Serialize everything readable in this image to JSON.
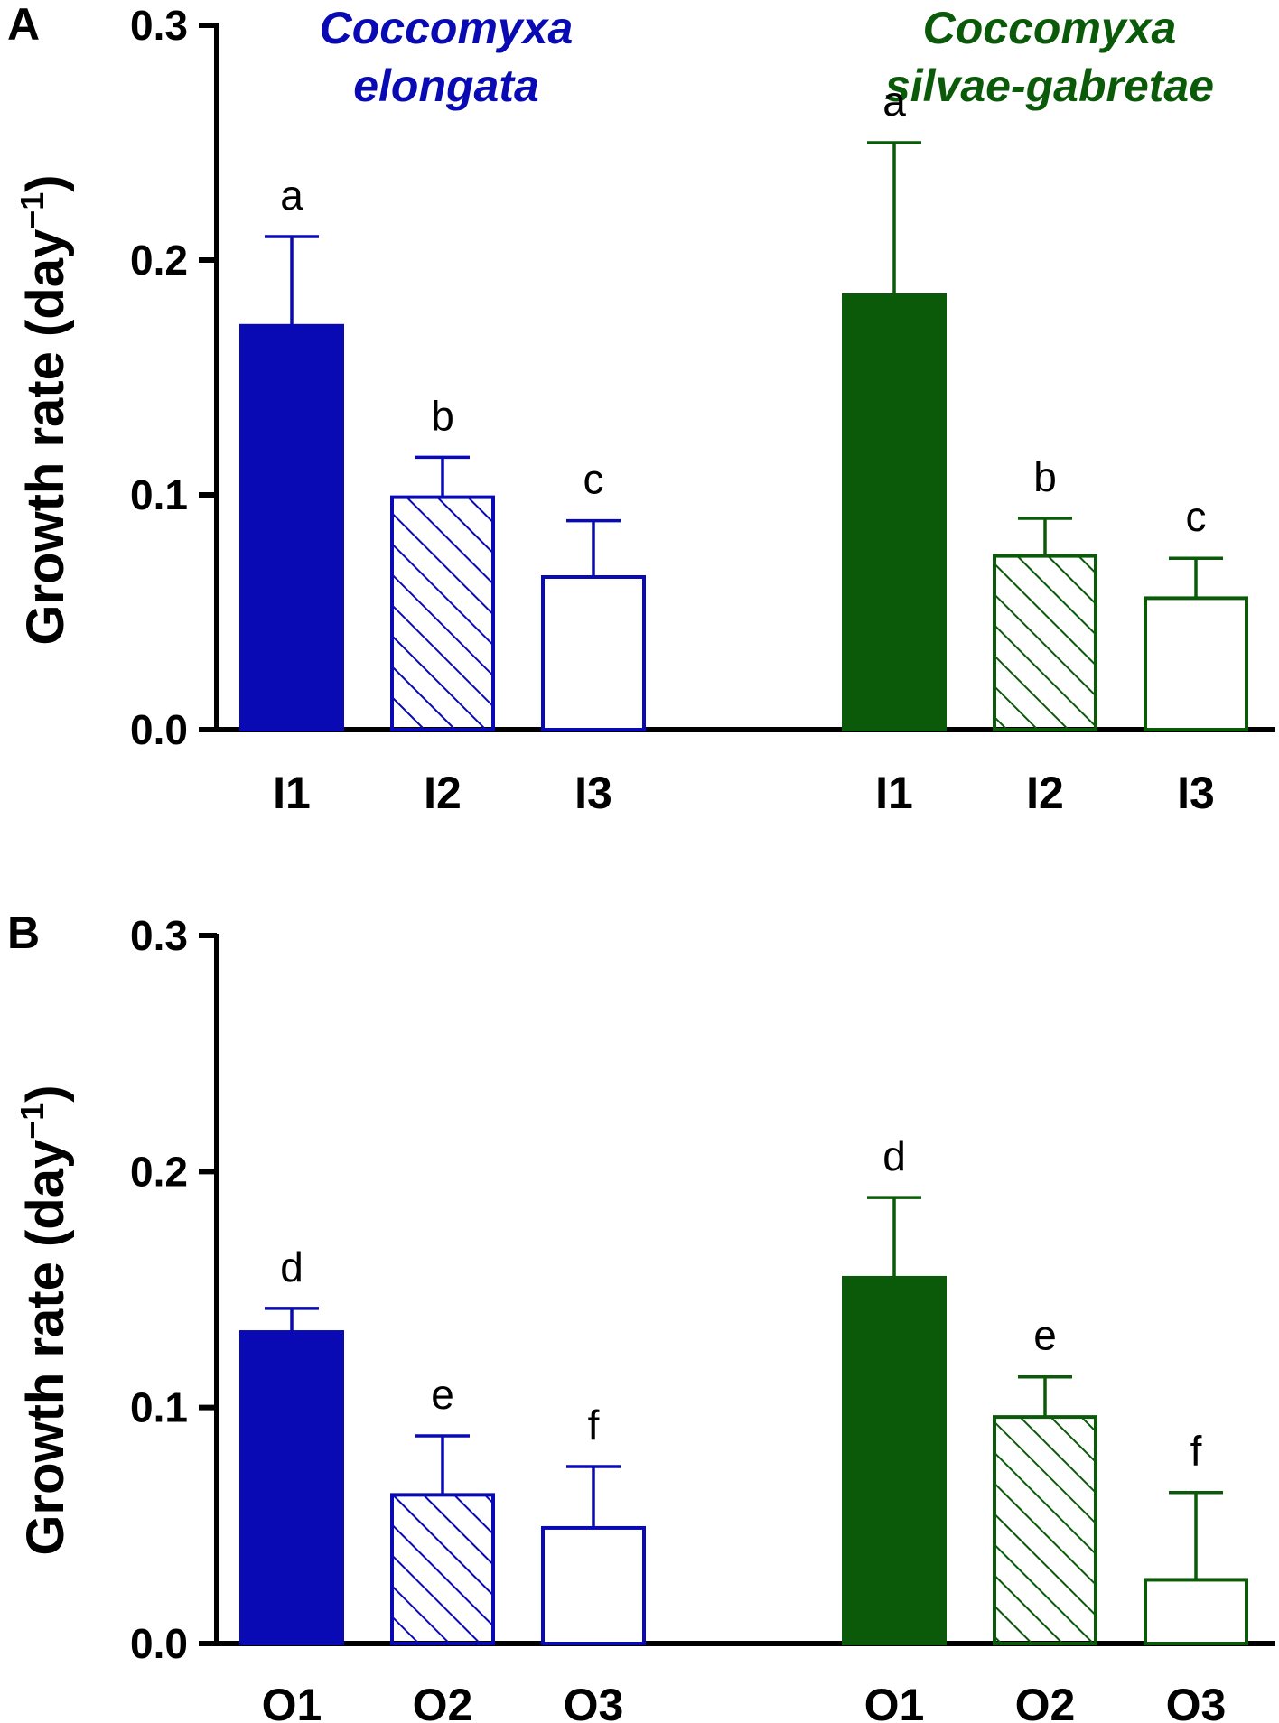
{
  "colors": {
    "species_1": "#0a0ab4",
    "species_2": "#0a5a0a",
    "axis": "#000000"
  },
  "species": [
    {
      "line1": "Coccomyxa",
      "line2": "elongata",
      "color": "#0a0ab4"
    },
    {
      "line1": "Coccomyxa",
      "line2": "silvae-gabretae",
      "color": "#0a5a0a"
    }
  ],
  "chart_data": [
    {
      "panel": "A",
      "type": "bar",
      "ylabel": "Growth rate (day",
      "ylabel_sup": "−1",
      "ylabel_close": ")",
      "ylim": [
        0,
        0.3
      ],
      "yticks": [
        "0.0",
        "0.1",
        "0.2",
        "0.3"
      ],
      "ytick_values": [
        0,
        0.1,
        0.2,
        0.3
      ],
      "categories": [
        "I1",
        "I2",
        "I3"
      ],
      "fills": [
        "solid",
        "hatched",
        "open"
      ],
      "series": [
        {
          "name": "Coccomyxa elongata",
          "values": [
            0.172,
            0.099,
            0.065
          ],
          "errors": [
            0.038,
            0.017,
            0.024
          ],
          "letters": [
            "a",
            "b",
            "c"
          ]
        },
        {
          "name": "Coccomyxa silvae-gabretae",
          "values": [
            0.185,
            0.074,
            0.056
          ],
          "errors": [
            0.065,
            0.016,
            0.017
          ],
          "letters": [
            "a",
            "b",
            "c"
          ]
        }
      ]
    },
    {
      "panel": "B",
      "type": "bar",
      "ylabel": "Growth rate (day",
      "ylabel_sup": "−1",
      "ylabel_close": ")",
      "ylim": [
        0,
        0.3
      ],
      "yticks": [
        "0.0",
        "0.1",
        "0.2",
        "0.3"
      ],
      "ytick_values": [
        0,
        0.1,
        0.2,
        0.3
      ],
      "categories": [
        "O1",
        "O2",
        "O3"
      ],
      "fills": [
        "solid",
        "hatched",
        "open"
      ],
      "series": [
        {
          "name": "Coccomyxa elongata",
          "values": [
            0.132,
            0.063,
            0.049
          ],
          "errors": [
            0.01,
            0.025,
            0.026
          ],
          "letters": [
            "d",
            "e",
            "f"
          ]
        },
        {
          "name": "Coccomyxa silvae-gabretae",
          "values": [
            0.155,
            0.096,
            0.027
          ],
          "errors": [
            0.034,
            0.017,
            0.037
          ],
          "letters": [
            "d",
            "e",
            "f"
          ]
        }
      ]
    }
  ]
}
